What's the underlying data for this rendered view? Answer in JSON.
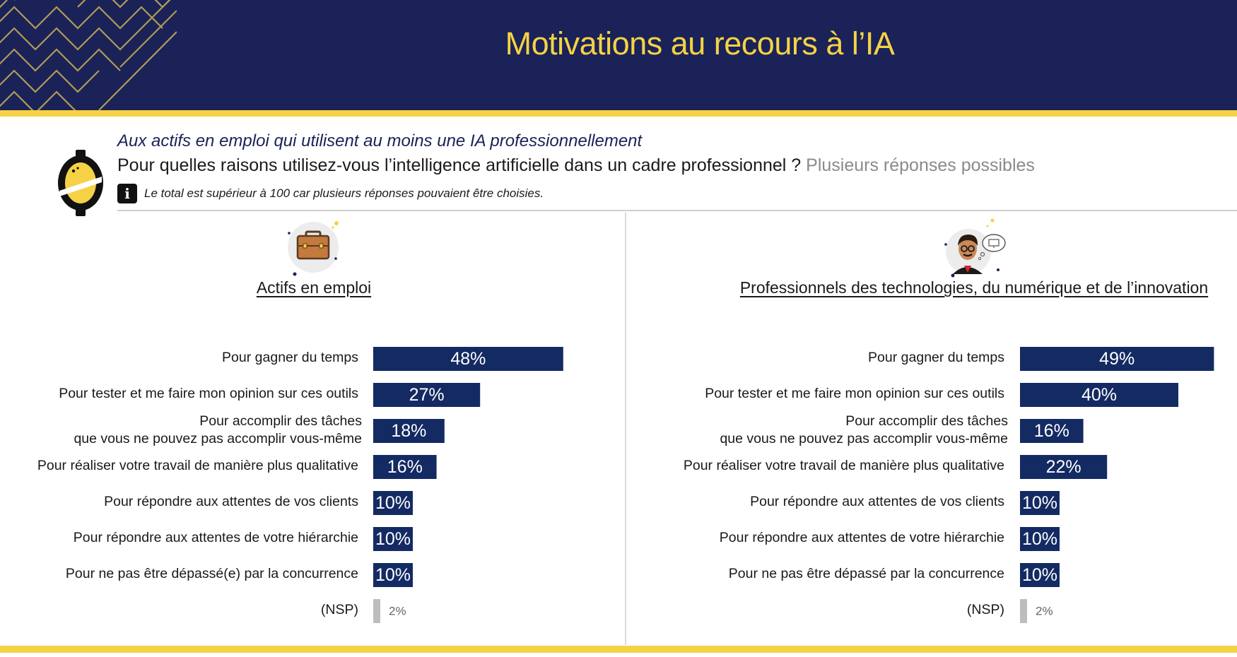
{
  "header": {
    "title": "Motivations au recours à l’IA"
  },
  "intro": {
    "audience": "Aux actifs en emploi qui utilisent au moins une IA professionnellement",
    "question": "Pour quelles raisons utilisez-vous l’intelligence artificielle dans un cadre professionnel ?",
    "question_hint": "Plusieurs réponses possibles",
    "note": "Le total est supérieur à 100 car plusieurs réponses pouvaient être choisies."
  },
  "colors": {
    "navy": "#1a2257",
    "bar": "#142a63",
    "accent_yellow": "#f5d245",
    "nsp_bar": "#bdbdbd"
  },
  "icons": {
    "left_panel": "briefcase-icon",
    "right_panel": "tech-professional-icon",
    "logo": "brand-logo",
    "info": "info-icon"
  },
  "chart_data": [
    {
      "type": "bar",
      "orientation": "horizontal",
      "title": "Actifs en emploi",
      "categories": [
        "Pour gagner du temps",
        "Pour tester et me faire mon opinion sur ces outils",
        "Pour accomplir des tâches que vous ne pouvez pas accomplir vous-même",
        "Pour réaliser votre travail de manière plus qualitative",
        "Pour répondre aux attentes de vos clients",
        "Pour répondre aux attentes de votre hiérarchie",
        "Pour ne pas être dépassé(e) par la concurrence",
        "(NSP)"
      ],
      "category_lines": [
        [
          "Pour gagner du temps"
        ],
        [
          "Pour tester et me faire mon opinion sur ces outils"
        ],
        [
          "Pour accomplir des tâches",
          "que vous ne pouvez pas accomplir vous-même"
        ],
        [
          "Pour réaliser votre travail de manière plus qualitative"
        ],
        [
          "Pour répondre aux attentes de vos clients"
        ],
        [
          "Pour répondre aux attentes de votre hiérarchie"
        ],
        [
          "Pour ne pas être dépassé(e) par la concurrence"
        ],
        [
          "(NSP)"
        ]
      ],
      "values": [
        48,
        27,
        18,
        16,
        10,
        10,
        10,
        2
      ],
      "value_labels": [
        "48%",
        "27%",
        "18%",
        "16%",
        "10%",
        "10%",
        "10%",
        "2%"
      ],
      "unit": "%"
    },
    {
      "type": "bar",
      "orientation": "horizontal",
      "title": "Professionnels des technologies, du numérique et de l’innovation",
      "categories": [
        "Pour gagner du temps",
        "Pour tester et me faire mon opinion sur ces outils",
        "Pour accomplir des tâches que vous ne pouvez pas accomplir vous-même",
        "Pour réaliser votre travail de manière plus qualitative",
        "Pour répondre aux attentes de vos clients",
        "Pour répondre aux attentes de votre hiérarchie",
        "Pour ne pas être dépassé par la concurrence",
        "(NSP)"
      ],
      "category_lines": [
        [
          "Pour gagner du temps"
        ],
        [
          "Pour tester et me faire mon opinion sur ces outils"
        ],
        [
          "Pour accomplir des tâches",
          "que vous ne pouvez pas accomplir vous-même"
        ],
        [
          "Pour réaliser votre travail de manière plus qualitative"
        ],
        [
          "Pour répondre aux attentes de vos clients"
        ],
        [
          "Pour répondre aux attentes de votre hiérarchie"
        ],
        [
          "Pour ne pas être dépassé par la concurrence"
        ],
        [
          "(NSP)"
        ]
      ],
      "values": [
        49,
        40,
        16,
        22,
        10,
        10,
        10,
        2
      ],
      "value_labels": [
        "49%",
        "40%",
        "16%",
        "22%",
        "10%",
        "10%",
        "10%",
        "2%"
      ],
      "unit": "%"
    }
  ]
}
